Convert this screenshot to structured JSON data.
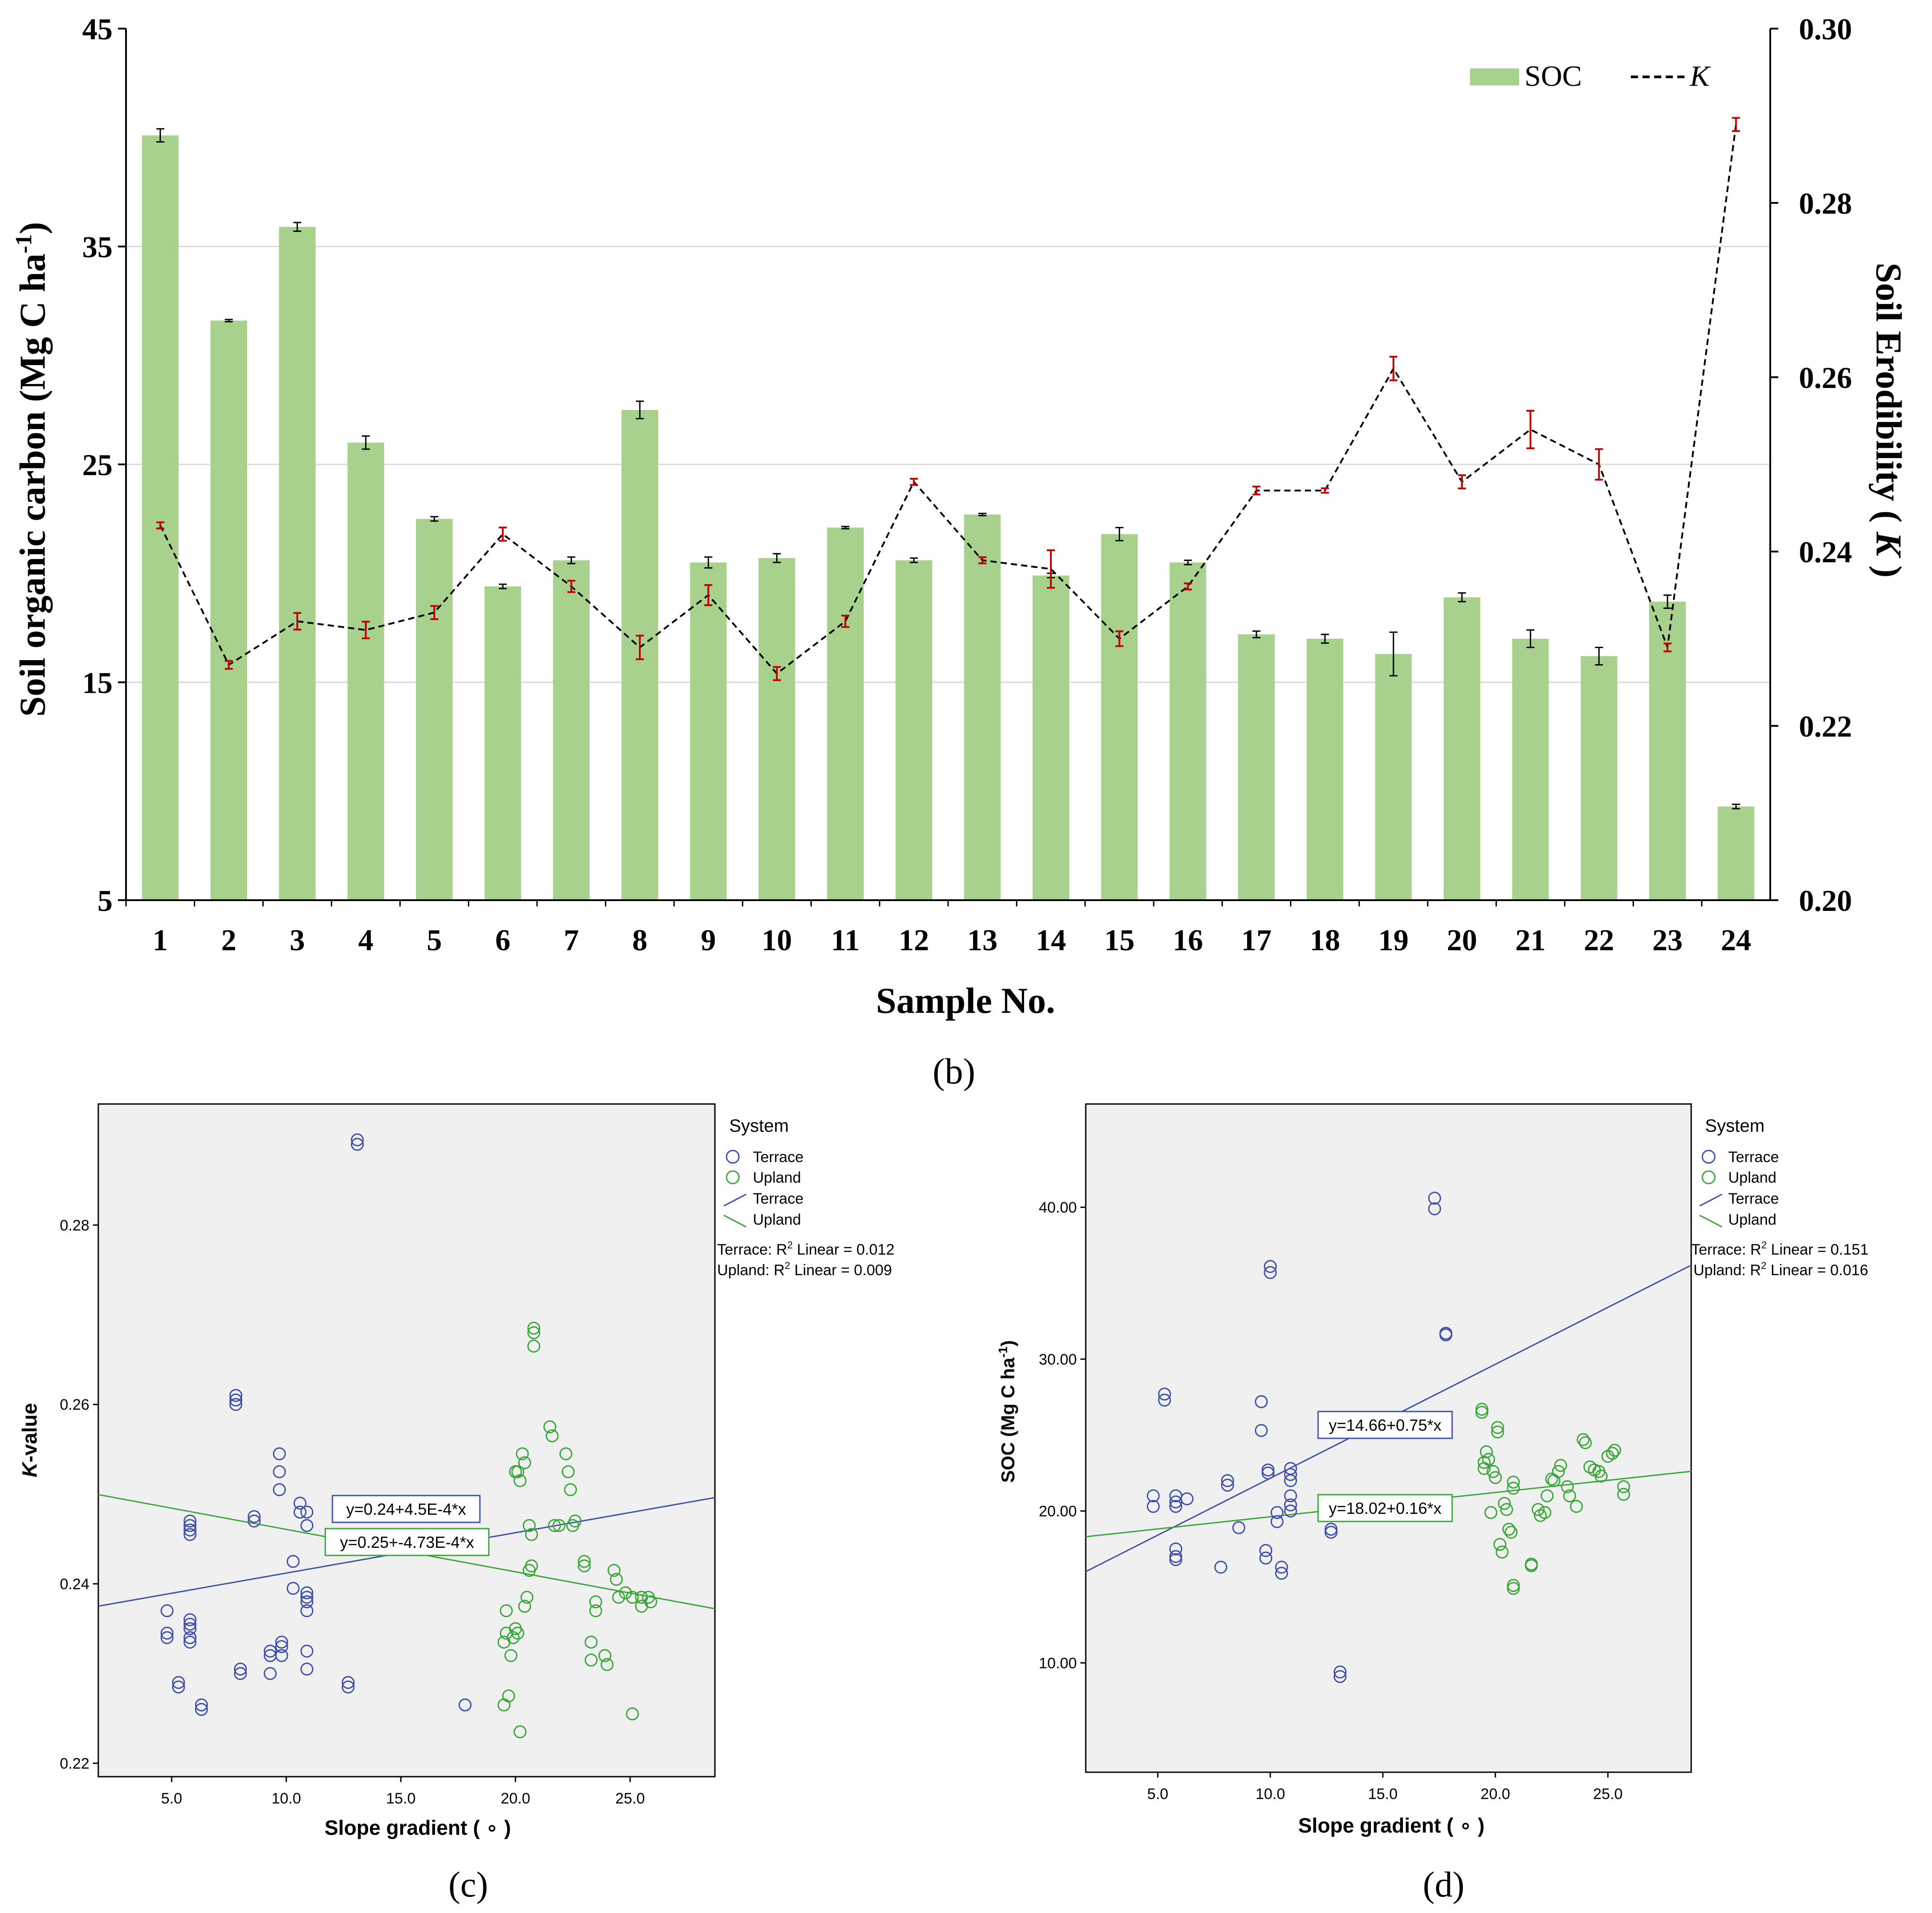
{
  "panel_b": {
    "label": "(b)",
    "chart_data": {
      "type": "bar+line",
      "categories": [
        "1",
        "2",
        "3",
        "4",
        "5",
        "6",
        "7",
        "8",
        "9",
        "10",
        "11",
        "12",
        "13",
        "14",
        "15",
        "16",
        "17",
        "18",
        "19",
        "20",
        "21",
        "22",
        "23",
        "24"
      ],
      "xlabel": "Sample No.",
      "ylabel": "Soil organic carbon (Mg C ha",
      "ylabel_sup": "-1",
      "ylabel_tail": ")",
      "ylim": [
        5,
        45
      ],
      "yticks": [
        "5",
        "15",
        "25",
        "35",
        "45"
      ],
      "y2label": "Soil Erodibility ( ",
      "y2label_italic": "K",
      "y2label_tail": " )",
      "y2lim": [
        0.2,
        0.3
      ],
      "y2ticks": [
        "0.20",
        "0.22",
        "0.24",
        "0.26",
        "0.28",
        "0.30"
      ],
      "grid": "horizontal",
      "legend": "top-right",
      "legend_bar": "SOC",
      "legend_line": "K",
      "series": [
        {
          "name": "SOC",
          "kind": "bar",
          "color": "#a9d18e",
          "error_color": "#000000",
          "values": [
            40.1,
            31.6,
            35.9,
            26.0,
            22.5,
            19.4,
            20.6,
            27.5,
            20.5,
            20.7,
            22.1,
            20.6,
            22.7,
            19.9,
            21.8,
            20.5,
            17.2,
            17.0,
            16.3,
            18.9,
            17.0,
            16.2,
            18.7,
            9.3
          ],
          "errors": [
            0.3,
            0.05,
            0.2,
            0.3,
            0.1,
            0.1,
            0.15,
            0.4,
            0.25,
            0.2,
            0.05,
            0.1,
            0.05,
            0.1,
            0.3,
            0.1,
            0.15,
            0.2,
            1.0,
            0.2,
            0.4,
            0.4,
            0.3,
            0.1
          ]
        },
        {
          "name": "K",
          "kind": "line",
          "color": "#000000",
          "error_color": "#c00000",
          "values": [
            0.243,
            0.227,
            0.232,
            0.231,
            0.233,
            0.242,
            0.236,
            0.229,
            0.235,
            0.226,
            0.232,
            0.248,
            0.239,
            0.238,
            0.23,
            0.236,
            0.247,
            0.247,
            0.261,
            0.248,
            0.254,
            0.25,
            0.229,
            0.289
          ],
          "errors": [
            0.0002,
            0.0003,
            0.0008,
            0.0008,
            0.0006,
            0.0006,
            0.0005,
            0.0012,
            0.001,
            0.0006,
            0.0005,
            0.0002,
            0.0002,
            0.002,
            0.0007,
            0.0002,
            0.0003,
            0.0001,
            0.0012,
            0.0006,
            0.002,
            0.0016,
            0.0003,
            0.0006
          ]
        }
      ]
    }
  },
  "panel_c": {
    "label": "(c)",
    "chart_data": {
      "type": "scatter",
      "xlabel": "Slope gradient ( ∘ )",
      "ylabel_italic": "K",
      "ylabel": "-value",
      "xlim": [
        1.8,
        28.7
      ],
      "ylim": [
        0.2185,
        0.2935
      ],
      "xticks": [
        "5.0",
        "10.0",
        "15.0",
        "20.0",
        "25.0"
      ],
      "yticks": [
        "0.22",
        "0.24",
        "0.26",
        "0.28"
      ],
      "legend_title": "System",
      "legend_marker_terrace": "Terrace",
      "legend_marker_upland": "Upland",
      "legend_line_terrace": "Terrace",
      "legend_line_upland": "Upland",
      "r2_terrace_prefix": "Terrace: R",
      "r2_terrace_suffix": " Linear = 0.012",
      "r2_upland_prefix": "Upland: R",
      "r2_upland_suffix": " Linear = 0.009",
      "r2_sup": "2",
      "eq_terrace": "y=0.24+4.5E-4*x",
      "eq_upland": "y=0.25+-4.73E-4*x",
      "colors": {
        "terrace": "#3f51a6",
        "upland": "#3aa63a",
        "plot_bg": "#f0f0f0"
      },
      "fit_terrace": {
        "intercept": 0.2367,
        "slope": 0.00045
      },
      "fit_upland": {
        "intercept": 0.2508,
        "slope": -0.000473
      },
      "terrace_points": [
        [
          4.8,
          0.237
        ],
        [
          4.8,
          0.2345
        ],
        [
          4.8,
          0.234
        ],
        [
          5.3,
          0.229
        ],
        [
          5.3,
          0.2285
        ],
        [
          5.8,
          0.236
        ],
        [
          5.8,
          0.2355
        ],
        [
          5.8,
          0.235
        ],
        [
          5.8,
          0.234
        ],
        [
          5.8,
          0.2335
        ],
        [
          5.8,
          0.2465
        ],
        [
          5.8,
          0.246
        ],
        [
          5.8,
          0.2455
        ],
        [
          5.8,
          0.247
        ],
        [
          6.3,
          0.2265
        ],
        [
          6.3,
          0.226
        ],
        [
          7.8,
          0.261
        ],
        [
          7.8,
          0.2605
        ],
        [
          7.8,
          0.26
        ],
        [
          8.0,
          0.2305
        ],
        [
          8.0,
          0.23
        ],
        [
          8.6,
          0.2475
        ],
        [
          8.6,
          0.247
        ],
        [
          9.3,
          0.2325
        ],
        [
          9.3,
          0.232
        ],
        [
          9.3,
          0.23
        ],
        [
          9.7,
          0.2545
        ],
        [
          9.7,
          0.2525
        ],
        [
          9.7,
          0.2505
        ],
        [
          9.8,
          0.2335
        ],
        [
          9.8,
          0.233
        ],
        [
          9.8,
          0.232
        ],
        [
          10.3,
          0.2425
        ],
        [
          10.3,
          0.2395
        ],
        [
          10.6,
          0.249
        ],
        [
          10.6,
          0.248
        ],
        [
          10.9,
          0.248
        ],
        [
          10.9,
          0.2465
        ],
        [
          10.9,
          0.239
        ],
        [
          10.9,
          0.2385
        ],
        [
          10.9,
          0.238
        ],
        [
          10.9,
          0.237
        ],
        [
          10.9,
          0.2325
        ],
        [
          10.9,
          0.2305
        ],
        [
          12.7,
          0.229
        ],
        [
          12.7,
          0.2285
        ],
        [
          13.1,
          0.2895
        ],
        [
          13.1,
          0.289
        ],
        [
          17.8,
          0.2265
        ]
      ],
      "upland_points": [
        [
          19.5,
          0.2335
        ],
        [
          19.5,
          0.2265
        ],
        [
          19.6,
          0.2345
        ],
        [
          19.6,
          0.237
        ],
        [
          19.7,
          0.2275
        ],
        [
          19.8,
          0.232
        ],
        [
          19.9,
          0.234
        ],
        [
          20.0,
          0.235
        ],
        [
          20.0,
          0.2525
        ],
        [
          20.1,
          0.2345
        ],
        [
          20.1,
          0.2525
        ],
        [
          20.2,
          0.2515
        ],
        [
          20.2,
          0.2235
        ],
        [
          20.3,
          0.2545
        ],
        [
          20.4,
          0.2535
        ],
        [
          20.4,
          0.2375
        ],
        [
          20.5,
          0.2385
        ],
        [
          20.6,
          0.2415
        ],
        [
          20.6,
          0.2465
        ],
        [
          20.7,
          0.2455
        ],
        [
          20.7,
          0.242
        ],
        [
          20.8,
          0.2685
        ],
        [
          20.8,
          0.268
        ],
        [
          20.8,
          0.2665
        ],
        [
          21.5,
          0.2575
        ],
        [
          21.6,
          0.2565
        ],
        [
          21.7,
          0.2465
        ],
        [
          21.9,
          0.2465
        ],
        [
          22.2,
          0.2545
        ],
        [
          22.3,
          0.2525
        ],
        [
          22.4,
          0.2505
        ],
        [
          22.5,
          0.2465
        ],
        [
          22.6,
          0.247
        ],
        [
          23.0,
          0.2425
        ],
        [
          23.0,
          0.242
        ],
        [
          23.3,
          0.2335
        ],
        [
          23.3,
          0.2315
        ],
        [
          23.5,
          0.238
        ],
        [
          23.5,
          0.237
        ],
        [
          23.9,
          0.232
        ],
        [
          24.0,
          0.231
        ],
        [
          24.3,
          0.2415
        ],
        [
          24.4,
          0.2405
        ],
        [
          24.5,
          0.2385
        ],
        [
          24.8,
          0.239
        ],
        [
          25.1,
          0.2255
        ],
        [
          25.1,
          0.2385
        ],
        [
          25.5,
          0.2385
        ],
        [
          25.5,
          0.2375
        ],
        [
          25.8,
          0.2385
        ],
        [
          25.9,
          0.238
        ]
      ]
    }
  },
  "panel_d": {
    "label": "(d)",
    "chart_data": {
      "type": "scatter",
      "xlabel": "Slope gradient ( ∘ )",
      "ylabel": "SOC (Mg C ha",
      "ylabel_sup": "-1",
      "ylabel_tail": ")",
      "xlim": [
        1.8,
        28.7
      ],
      "ylim": [
        2.8,
        46.8
      ],
      "xticks": [
        "5.0",
        "10.0",
        "15.0",
        "20.0",
        "25.0"
      ],
      "yticks": [
        "10.00",
        "20.00",
        "30.00",
        "40.00"
      ],
      "legend_title": "System",
      "legend_marker_terrace": "Terrace",
      "legend_marker_upland": "Upland",
      "legend_line_terrace": "Terrace",
      "legend_line_upland": "Upland",
      "r2_terrace_prefix": "Terrace: R",
      "r2_terrace_suffix": " Linear = 0.151",
      "r2_upland_prefix": "Upland: R",
      "r2_upland_suffix": " Linear = 0.016",
      "r2_sup": "2",
      "eq_terrace": "y=14.66+0.75*x",
      "eq_upland": "y=18.02+0.16*x",
      "colors": {
        "terrace": "#3f51a6",
        "upland": "#3aa63a",
        "plot_bg": "#f0f0f0"
      },
      "fit_terrace": {
        "intercept": 14.66,
        "slope": 0.75
      },
      "fit_upland": {
        "intercept": 18.02,
        "slope": 0.16
      },
      "terrace_points": [
        [
          4.8,
          21.0
        ],
        [
          4.8,
          20.3
        ],
        [
          5.3,
          27.7
        ],
        [
          5.3,
          27.3
        ],
        [
          5.8,
          21.0
        ],
        [
          5.8,
          20.6
        ],
        [
          5.8,
          20.3
        ],
        [
          5.8,
          17.5
        ],
        [
          5.8,
          17.0
        ],
        [
          5.8,
          16.8
        ],
        [
          6.3,
          20.8
        ],
        [
          7.8,
          16.3
        ],
        [
          8.1,
          22.0
        ],
        [
          8.1,
          21.7
        ],
        [
          8.6,
          18.9
        ],
        [
          9.6,
          27.2
        ],
        [
          9.6,
          25.3
        ],
        [
          9.8,
          17.4
        ],
        [
          9.8,
          16.9
        ],
        [
          9.9,
          22.7
        ],
        [
          9.9,
          22.5
        ],
        [
          10.0,
          36.1
        ],
        [
          10.0,
          35.7
        ],
        [
          10.3,
          19.9
        ],
        [
          10.3,
          19.3
        ],
        [
          10.5,
          16.3
        ],
        [
          10.5,
          15.9
        ],
        [
          10.9,
          22.8
        ],
        [
          10.9,
          22.4
        ],
        [
          10.9,
          22.0
        ],
        [
          10.9,
          21.0
        ],
        [
          10.9,
          20.4
        ],
        [
          10.9,
          20.0
        ],
        [
          12.7,
          18.8
        ],
        [
          12.7,
          18.6
        ],
        [
          13.1,
          9.4
        ],
        [
          13.1,
          9.1
        ],
        [
          17.3,
          40.6
        ],
        [
          17.3,
          39.9
        ],
        [
          17.8,
          31.7
        ],
        [
          17.8,
          31.6
        ]
      ],
      "upland_points": [
        [
          19.4,
          26.7
        ],
        [
          19.4,
          26.5
        ],
        [
          19.5,
          23.2
        ],
        [
          19.5,
          22.8
        ],
        [
          19.6,
          23.9
        ],
        [
          19.7,
          23.4
        ],
        [
          19.8,
          19.9
        ],
        [
          19.9,
          22.6
        ],
        [
          20.0,
          22.2
        ],
        [
          20.1,
          25.5
        ],
        [
          20.1,
          25.2
        ],
        [
          20.2,
          17.8
        ],
        [
          20.3,
          17.3
        ],
        [
          20.4,
          20.5
        ],
        [
          20.5,
          20.1
        ],
        [
          20.6,
          18.8
        ],
        [
          20.7,
          18.6
        ],
        [
          20.8,
          21.9
        ],
        [
          20.8,
          21.5
        ],
        [
          20.8,
          15.1
        ],
        [
          20.8,
          14.9
        ],
        [
          21.6,
          16.5
        ],
        [
          21.6,
          16.4
        ],
        [
          21.9,
          20.1
        ],
        [
          22.0,
          19.7
        ],
        [
          22.2,
          19.9
        ],
        [
          22.3,
          21.0
        ],
        [
          22.5,
          22.1
        ],
        [
          22.6,
          22.0
        ],
        [
          22.8,
          22.6
        ],
        [
          22.9,
          23.0
        ],
        [
          23.2,
          21.6
        ],
        [
          23.3,
          21.0
        ],
        [
          23.6,
          20.3
        ],
        [
          23.9,
          24.7
        ],
        [
          24.0,
          24.5
        ],
        [
          24.2,
          22.9
        ],
        [
          24.4,
          22.7
        ],
        [
          24.6,
          22.6
        ],
        [
          24.7,
          22.3
        ],
        [
          25.0,
          23.6
        ],
        [
          25.2,
          23.8
        ],
        [
          25.3,
          24.0
        ],
        [
          25.7,
          21.6
        ],
        [
          25.7,
          21.1
        ]
      ]
    }
  }
}
